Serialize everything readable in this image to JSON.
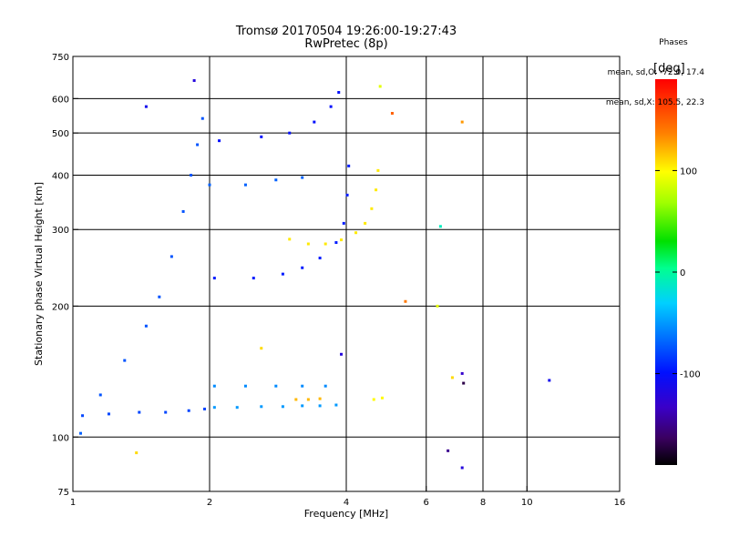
{
  "title": {
    "line1": "Tromsø 20170504 19:26:00-19:27:43",
    "line2": "RwPretec (8p)"
  },
  "phases": {
    "header": "Phases",
    "o_stats": "mean, sd,O: -72.0, 17.4",
    "x_stats": "mean, sd,X: 105.5, 22.3"
  },
  "colorbar": {
    "unit": "[deg]",
    "range": [
      -190,
      190
    ],
    "ticks": [
      {
        "value": 100,
        "label": "100"
      },
      {
        "value": 0,
        "label": "0"
      },
      {
        "value": -100,
        "label": "-100"
      }
    ]
  },
  "chart_data": {
    "type": "scatter",
    "title": "Tromsø 20170504 19:26:00-19:27:43",
    "subtitle": "RwPretec (8p)",
    "xlabel": "Frequency [MHz]",
    "ylabel": "Stationary phase Virtual Height [km]",
    "x_scale": "log",
    "y_scale": "log",
    "xlim": [
      1,
      16
    ],
    "ylim": [
      75,
      750
    ],
    "x_ticks": [
      1,
      2,
      4,
      6,
      8,
      10,
      16
    ],
    "y_ticks": [
      75,
      100,
      200,
      300,
      400,
      500,
      600,
      750
    ],
    "grid": true,
    "color_encoding": "phase [deg]",
    "traces": [
      {
        "name": "",
        "phase_deg": -80,
        "points": [
          [
            1.05,
            112
          ],
          [
            1.2,
            113
          ],
          [
            1.4,
            114
          ],
          [
            1.6,
            114
          ],
          [
            1.8,
            115
          ],
          [
            1.95,
            116
          ]
        ]
      },
      {
        "name": "",
        "phase_deg": -50,
        "points": [
          [
            2.05,
            117
          ],
          [
            2.3,
            117
          ],
          [
            2.6,
            117.5
          ],
          [
            2.9,
            117.5
          ],
          [
            3.2,
            118
          ],
          [
            3.5,
            118
          ],
          [
            3.8,
            118.5
          ]
        ]
      },
      {
        "name": "",
        "phase_deg": -55,
        "points": [
          [
            2.05,
            131
          ],
          [
            2.4,
            131
          ],
          [
            2.8,
            131
          ],
          [
            3.2,
            131
          ],
          [
            3.6,
            131
          ]
        ]
      },
      {
        "name": "",
        "phase_deg": -95,
        "points": [
          [
            2.05,
            232
          ],
          [
            2.5,
            232
          ],
          [
            2.9,
            237
          ],
          [
            3.2,
            245
          ],
          [
            3.5,
            258
          ],
          [
            3.8,
            280
          ],
          [
            3.95,
            310
          ],
          [
            4.02,
            360
          ],
          [
            4.05,
            420
          ]
        ]
      },
      {
        "name": "",
        "phase_deg": 105,
        "points": [
          [
            3.0,
            285
          ],
          [
            3.3,
            278
          ],
          [
            3.6,
            278
          ],
          [
            3.9,
            284
          ],
          [
            4.2,
            295
          ],
          [
            4.4,
            310
          ],
          [
            4.55,
            335
          ],
          [
            4.65,
            370
          ],
          [
            4.7,
            410
          ]
        ]
      },
      {
        "name": "",
        "phase_deg": -70,
        "points": [
          [
            2.0,
            380
          ],
          [
            2.4,
            380
          ],
          [
            2.8,
            390
          ],
          [
            3.2,
            395
          ]
        ]
      },
      {
        "name": "",
        "phase_deg": -100,
        "points": [
          [
            2.1,
            480
          ],
          [
            2.6,
            490
          ],
          [
            3.0,
            500
          ],
          [
            3.4,
            530
          ],
          [
            3.7,
            575
          ],
          [
            3.85,
            620
          ]
        ]
      },
      {
        "name": "",
        "phase_deg": -75,
        "points": [
          [
            1.15,
            125
          ],
          [
            1.3,
            150
          ],
          [
            1.45,
            180
          ],
          [
            1.55,
            210
          ],
          [
            1.65,
            260
          ],
          [
            1.75,
            330
          ],
          [
            1.82,
            400
          ],
          [
            1.88,
            470
          ],
          [
            1.93,
            540
          ]
        ]
      },
      {
        "name": "",
        "phase_deg": 120,
        "points": [
          [
            3.1,
            122
          ],
          [
            3.3,
            122
          ],
          [
            3.5,
            122.5
          ]
        ]
      },
      {
        "name": "",
        "phase_deg": 100,
        "points": [
          [
            4.6,
            122
          ],
          [
            4.8,
            123
          ]
        ]
      }
    ],
    "scattered_points": [
      {
        "x": 1.85,
        "y": 660,
        "phase_deg": -120
      },
      {
        "x": 1.45,
        "y": 575,
        "phase_deg": -110
      },
      {
        "x": 4.75,
        "y": 640,
        "phase_deg": 90
      },
      {
        "x": 5.05,
        "y": 555,
        "phase_deg": 150
      },
      {
        "x": 7.2,
        "y": 530,
        "phase_deg": 130
      },
      {
        "x": 6.45,
        "y": 305,
        "phase_deg": -10
      },
      {
        "x": 5.4,
        "y": 205,
        "phase_deg": 140
      },
      {
        "x": 6.35,
        "y": 200,
        "phase_deg": 90
      },
      {
        "x": 2.6,
        "y": 160,
        "phase_deg": 110
      },
      {
        "x": 3.9,
        "y": 155,
        "phase_deg": -120
      },
      {
        "x": 7.2,
        "y": 140,
        "phase_deg": -130
      },
      {
        "x": 7.25,
        "y": 133,
        "phase_deg": -170
      },
      {
        "x": 6.85,
        "y": 137,
        "phase_deg": 110
      },
      {
        "x": 11.2,
        "y": 135,
        "phase_deg": -110
      },
      {
        "x": 6.7,
        "y": 93,
        "phase_deg": -150
      },
      {
        "x": 7.2,
        "y": 85,
        "phase_deg": -120
      },
      {
        "x": 1.38,
        "y": 92,
        "phase_deg": 110
      },
      {
        "x": 1.04,
        "y": 102,
        "phase_deg": -70
      }
    ]
  }
}
